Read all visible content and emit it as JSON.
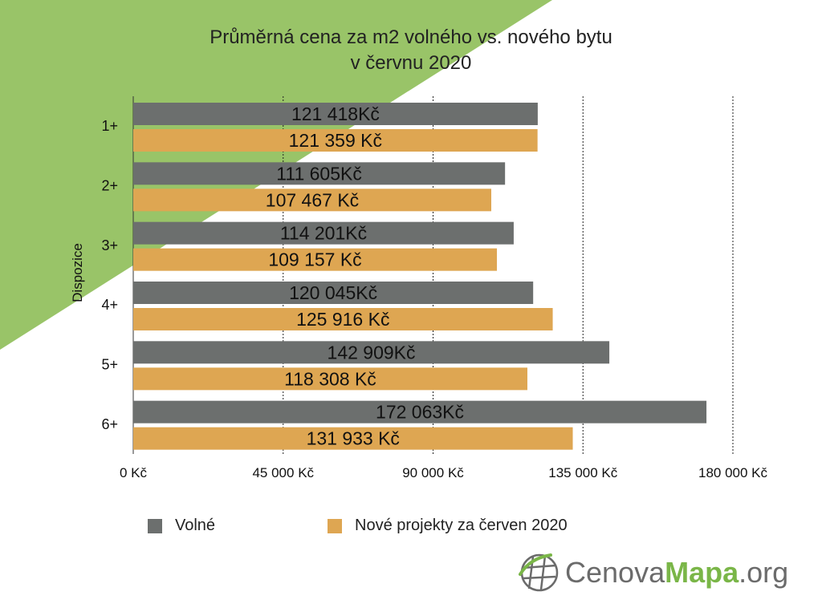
{
  "chart_data": {
    "type": "bar",
    "orientation": "horizontal",
    "title": [
      "Průměrná cena za m2 volného vs. nového bytu",
      "v červnu 2020"
    ],
    "ylabel": "Dispozice",
    "categories": [
      "1+",
      "2+",
      "3+",
      "4+",
      "5+",
      "6+"
    ],
    "series": [
      {
        "name": "Volné",
        "color": "#6c6f6e",
        "values": [
          121418,
          111605,
          114201,
          120045,
          142909,
          172063
        ],
        "labels": [
          "121 418Kč",
          "111 605Kč",
          "114 201Kč",
          "120 045Kč",
          "142 909Kč",
          "172 063Kč"
        ]
      },
      {
        "name": "Nové projekty za červen 2020",
        "color": "#dea652",
        "values": [
          121359,
          107467,
          109157,
          125916,
          118308,
          131933
        ],
        "labels": [
          "121 359 Kč",
          "107 467 Kč",
          "109 157 Kč",
          "125 916 Kč",
          "118 308 Kč",
          "131 933 Kč"
        ]
      }
    ],
    "xlim": [
      0,
      180000
    ],
    "xticks": [
      0,
      45000,
      90000,
      135000,
      180000
    ],
    "xtick_labels": [
      "0 Kč",
      "45 000 Kč",
      "90 000 Kč",
      "135 000 Kč",
      "180 000 Kč"
    ],
    "grid": "vertical dotted",
    "legend_position": "bottom"
  },
  "legend": {
    "volne": "Volné",
    "nove": "Nové projekty za červen 2020"
  },
  "logo": {
    "part1": "Cenova",
    "part2": "Mapa",
    "part3": ".org"
  },
  "colors": {
    "background_accent": "#99c468",
    "volne": "#6c6f6e",
    "nove": "#dea652",
    "logo_gray": "#6b6b6b",
    "logo_green": "#7ab648"
  }
}
